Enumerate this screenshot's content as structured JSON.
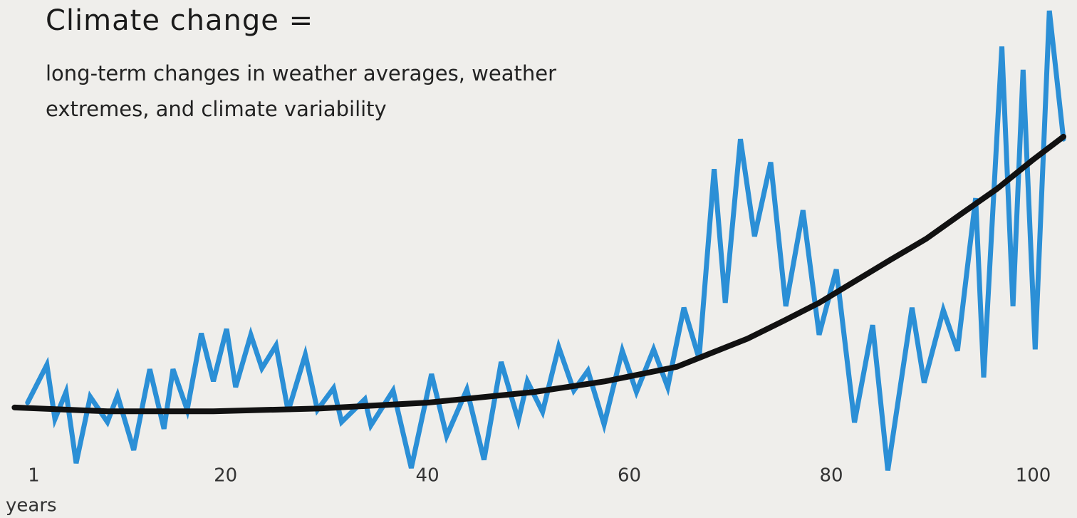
{
  "chart_data": {
    "type": "line",
    "title": "Climate change =",
    "subtitle": "long-term changes in weather averages, weather extremes, and climate variability",
    "x_label": "years",
    "xlim": [
      -1,
      103
    ],
    "xticks": [
      1,
      20,
      40,
      60,
      80,
      100
    ],
    "ylim": [
      0,
      100
    ],
    "grid": false,
    "series": [
      {
        "color": "#2b8fd6",
        "x": [
          0.4,
          2.3,
          3.1,
          4.2,
          5.2,
          6.6,
          8.3,
          9.3,
          10.9,
          12.5,
          13.9,
          14.8,
          16.2,
          17.6,
          18.8,
          20.1,
          21.0,
          22.5,
          23.6,
          25.0,
          26.2,
          27.9,
          29.1,
          30.7,
          31.5,
          33.8,
          34.4,
          36.6,
          38.4,
          40.4,
          41.9,
          43.9,
          45.6,
          47.3,
          49.0,
          49.9,
          51.4,
          53.0,
          54.5,
          55.9,
          57.5,
          59.3,
          60.7,
          62.4,
          63.8,
          65.4,
          66.9,
          68.4,
          69.5,
          71.0,
          72.4,
          74.0,
          75.5,
          77.2,
          78.8,
          80.5,
          82.3,
          84.1,
          85.6,
          88.0,
          89.2,
          91.1,
          92.5,
          94.3,
          95.1,
          96.9,
          98.0,
          99.0,
          100.2,
          101.6,
          103.0
        ],
        "values": [
          16.9,
          24.7,
          13.5,
          19.1,
          4.4,
          18.1,
          12.9,
          18.4,
          7.1,
          23.8,
          11.5,
          23.8,
          15.4,
          31.2,
          21.3,
          32.1,
          20.1,
          30.9,
          24.0,
          28.7,
          15.1,
          26.8,
          15.4,
          19.9,
          12.9,
          17.6,
          12.2,
          19.4,
          3.4,
          22.8,
          10.0,
          19.6,
          5.1,
          25.3,
          13.2,
          21.3,
          15.0,
          28.4,
          19.4,
          23.5,
          12.4,
          27.6,
          19.1,
          27.9,
          20.1,
          36.5,
          26.0,
          65.1,
          37.5,
          71.3,
          51.2,
          66.5,
          36.8,
          56.6,
          30.9,
          44.4,
          12.8,
          32.9,
          2.9,
          36.5,
          21.0,
          36.0,
          27.6,
          59.1,
          22.1,
          90.4,
          36.8,
          85.6,
          27.9,
          97.8,
          71.3
        ]
      },
      {
        "color": "#111111",
        "x": [
          -0.9,
          8.3,
          18.8,
          29.4,
          40.0,
          50.6,
          57.6,
          64.7,
          68.2,
          71.7,
          75.3,
          78.8,
          82.3,
          85.8,
          89.4,
          92.9,
          96.4,
          99.9,
          103.0
        ],
        "values": [
          15.9,
          15.1,
          15.1,
          15.7,
          16.9,
          19.1,
          21.3,
          24.3,
          27.2,
          30.1,
          33.8,
          37.5,
          41.9,
          46.3,
          50.7,
          55.9,
          61.0,
          66.9,
          71.8
        ]
      }
    ]
  }
}
